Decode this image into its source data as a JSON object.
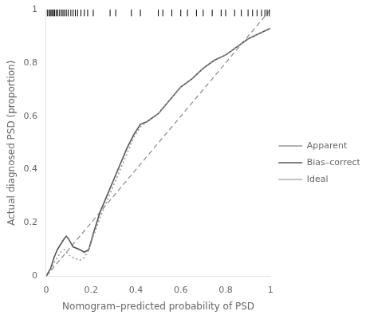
{
  "chart_data": {
    "type": "line",
    "xlabel": "Nomogram–predicted probability of PSD",
    "ylabel": "Actual diagnosed PSD (proportion)",
    "xlim": [
      0.0,
      1.0
    ],
    "ylim": [
      0.0,
      1.0
    ],
    "xticks": [
      0.0,
      0.2,
      0.4,
      0.6,
      0.8,
      1.0
    ],
    "yticks": [
      0.0,
      0.2,
      0.4,
      0.6,
      0.8,
      1.0
    ],
    "grid": false,
    "legend": "right",
    "series": [
      {
        "name": "Apparent",
        "color": "#999999",
        "line_style": "dotted",
        "x": [
          0.0,
          0.02,
          0.035,
          0.05,
          0.065,
          0.08,
          0.09,
          0.1,
          0.12,
          0.15,
          0.17,
          0.19,
          0.21,
          0.24,
          0.27,
          0.3,
          0.33,
          0.36,
          0.39,
          0.42,
          0.45,
          0.5,
          0.55,
          0.6,
          0.65,
          0.7,
          0.75,
          0.8,
          0.85,
          0.9,
          0.95,
          1.0
        ],
        "values": [
          0.0,
          0.02,
          0.05,
          0.07,
          0.09,
          0.1,
          0.09,
          0.08,
          0.07,
          0.06,
          0.07,
          0.1,
          0.15,
          0.22,
          0.28,
          0.34,
          0.4,
          0.46,
          0.52,
          0.56,
          0.58,
          0.61,
          0.66,
          0.71,
          0.74,
          0.78,
          0.81,
          0.83,
          0.86,
          0.89,
          0.91,
          0.93
        ]
      },
      {
        "name": "Bias–corrected",
        "color": "#555555",
        "line_style": "solid",
        "x": [
          0.0,
          0.02,
          0.035,
          0.05,
          0.065,
          0.08,
          0.09,
          0.1,
          0.12,
          0.15,
          0.17,
          0.19,
          0.21,
          0.24,
          0.27,
          0.3,
          0.33,
          0.36,
          0.39,
          0.42,
          0.45,
          0.5,
          0.55,
          0.6,
          0.65,
          0.7,
          0.75,
          0.8,
          0.85,
          0.9,
          0.95,
          1.0
        ],
        "values": [
          0.0,
          0.03,
          0.07,
          0.1,
          0.12,
          0.14,
          0.15,
          0.14,
          0.11,
          0.1,
          0.09,
          0.1,
          0.16,
          0.24,
          0.3,
          0.36,
          0.42,
          0.48,
          0.53,
          0.57,
          0.58,
          0.61,
          0.66,
          0.71,
          0.74,
          0.78,
          0.81,
          0.83,
          0.86,
          0.89,
          0.91,
          0.93
        ]
      },
      {
        "name": "Ideal",
        "color": "#888888",
        "line_style": "dashed",
        "x": [
          0.0,
          1.0
        ],
        "values": [
          0.0,
          1.0
        ]
      }
    ],
    "rug": [
      0.005,
      0.012,
      0.018,
      0.022,
      0.028,
      0.033,
      0.038,
      0.045,
      0.052,
      0.06,
      0.068,
      0.075,
      0.082,
      0.09,
      0.098,
      0.11,
      0.12,
      0.13,
      0.14,
      0.155,
      0.17,
      0.185,
      0.21,
      0.285,
      0.31,
      0.38,
      0.42,
      0.5,
      0.52,
      0.56,
      0.6,
      0.63,
      0.67,
      0.7,
      0.74,
      0.78,
      0.8,
      0.84,
      0.87,
      0.9,
      0.92,
      0.94,
      0.96,
      0.975,
      0.985,
      0.995
    ]
  }
}
